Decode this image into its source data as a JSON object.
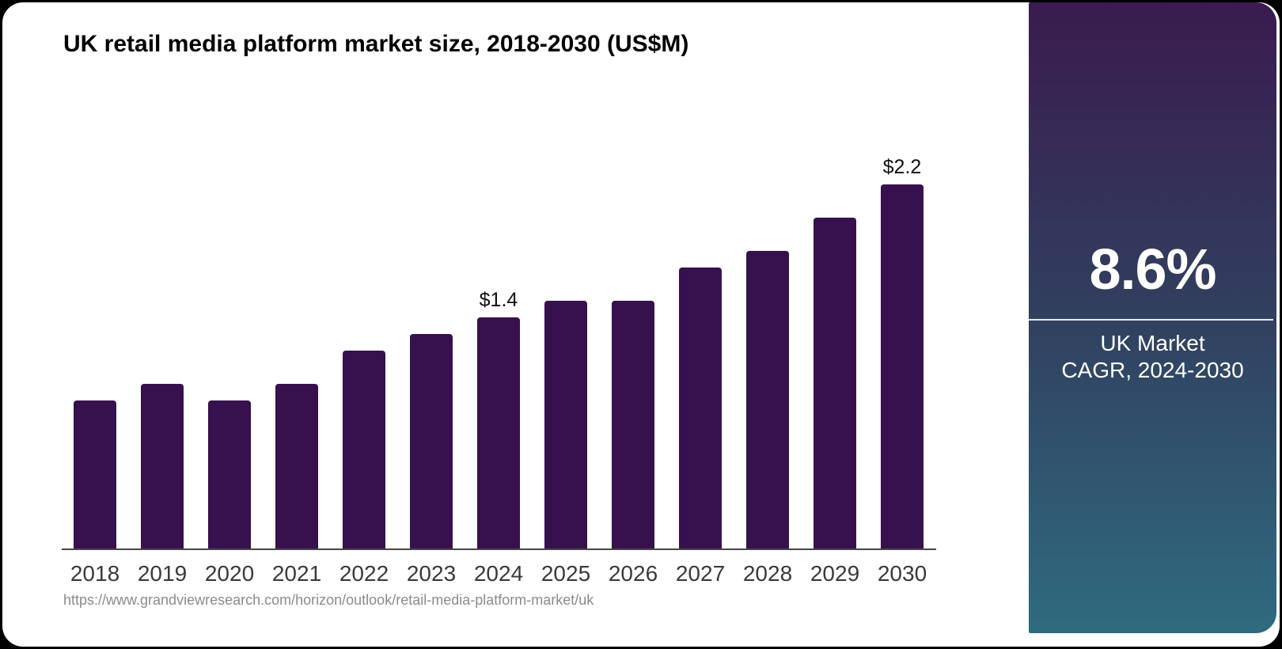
{
  "title": "UK retail media platform market size, 2018-2030 (US$M)",
  "source_url": "https://www.grandviewresearch.com/horizon/outlook/retail-media-platform-market/uk",
  "sidebar": {
    "cagr_value": "8.6%",
    "caption_line1": "UK Market",
    "caption_line2": "CAGR, 2024-2030"
  },
  "colors": {
    "bar": "#36114d",
    "sidebar_gradient_top": "#3a1b4f",
    "sidebar_gradient_mid": "#31405f",
    "sidebar_gradient_bottom": "#2f6b80",
    "axis_line": "#474747",
    "url_gray": "#8b8b8b"
  },
  "chart_data": {
    "type": "bar",
    "title": "UK retail media platform market size, 2018-2030 (US$M)",
    "categories": [
      2018,
      2019,
      2020,
      2021,
      2022,
      2023,
      2024,
      2025,
      2026,
      2027,
      2028,
      2029,
      2030
    ],
    "values": [
      0.9,
      1.0,
      0.9,
      1.0,
      1.2,
      1.3,
      1.4,
      1.5,
      1.5,
      1.7,
      1.8,
      2.0,
      2.2
    ],
    "data_labels": {
      "2024": "$1.4",
      "2030": "$2.2"
    },
    "xlabel": "",
    "ylabel": "",
    "ylim": [
      0,
      2.4
    ],
    "grid": false,
    "legend": false,
    "bar_color": "#36114d",
    "annotation": "CAGR 8.6% (2024-2030)"
  }
}
